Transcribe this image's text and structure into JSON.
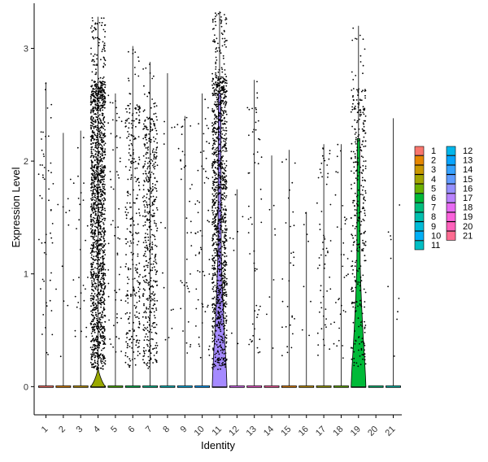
{
  "chart_data": {
    "type": "violin",
    "xlabel": "Identity",
    "ylabel": "Expression Level",
    "categories": [
      "1",
      "2",
      "3",
      "4",
      "5",
      "6",
      "7",
      "8",
      "9",
      "10",
      "11",
      "12",
      "13",
      "14",
      "15",
      "16",
      "17",
      "18",
      "19",
      "20",
      "21"
    ],
    "ylim": [
      -0.25,
      3.4
    ],
    "yticks": [
      0,
      1,
      2,
      3
    ],
    "grid": false,
    "legend_position": "right",
    "legend_columns": 2,
    "colors": [
      "#F8766D",
      "#E38900",
      "#C49A00",
      "#99A800",
      "#53B400",
      "#00BC56",
      "#00C094",
      "#00BFC4",
      "#00B6EB",
      "#06A4FF",
      "#A58AFF",
      "#DF70F8",
      "#FB61D7",
      "#FF66A8",
      "#E58700",
      "#C99800",
      "#A3A500",
      "#6BB100",
      "#00BA38",
      "#00BF7D",
      "#00C0AF"
    ],
    "legend_colors": [
      "#F8766D",
      "#E58700",
      "#C99800",
      "#A3A500",
      "#6BB100",
      "#00BA38",
      "#00BF7D",
      "#00C0AF",
      "#00BCD8",
      "#00B0F6",
      "#00BFC4",
      "#00B6EB",
      "#06A4FF",
      "#35A2FF",
      "#619CFF",
      "#9590FF",
      "#B983FF",
      "#E76BF3",
      "#FA62DB",
      "#FF62BC",
      "#FF6C91"
    ],
    "series_summary": [
      {
        "cluster": "1",
        "max": 2.7,
        "dots": 55
      },
      {
        "cluster": "2",
        "max": 2.25,
        "dots": 12
      },
      {
        "cluster": "3",
        "max": 2.27,
        "dots": 30
      },
      {
        "cluster": "4",
        "max": 3.28,
        "dots": 1600
      },
      {
        "cluster": "5",
        "max": 2.6,
        "dots": 60
      },
      {
        "cluster": "6",
        "max": 3.02,
        "dots": 300
      },
      {
        "cluster": "7",
        "max": 2.88,
        "dots": 480
      },
      {
        "cluster": "8",
        "max": 2.78,
        "dots": 14
      },
      {
        "cluster": "9",
        "max": 2.4,
        "dots": 40
      },
      {
        "cluster": "10",
        "max": 2.6,
        "dots": 60
      },
      {
        "cluster": "11",
        "max": 3.33,
        "dots": 1200
      },
      {
        "cluster": "12",
        "max": 1.75,
        "dots": 8
      },
      {
        "cluster": "13",
        "max": 2.72,
        "dots": 55
      },
      {
        "cluster": "14",
        "max": 2.05,
        "dots": 8
      },
      {
        "cluster": "15",
        "max": 2.1,
        "dots": 30
      },
      {
        "cluster": "16",
        "max": 1.55,
        "dots": 8
      },
      {
        "cluster": "17",
        "max": 2.15,
        "dots": 60
      },
      {
        "cluster": "18",
        "max": 2.15,
        "dots": 35
      },
      {
        "cluster": "19",
        "max": 3.2,
        "dots": 350
      },
      {
        "cluster": "20",
        "max": 0,
        "dots": 0
      },
      {
        "cluster": "21",
        "max": 2.38,
        "dots": 10
      }
    ]
  }
}
